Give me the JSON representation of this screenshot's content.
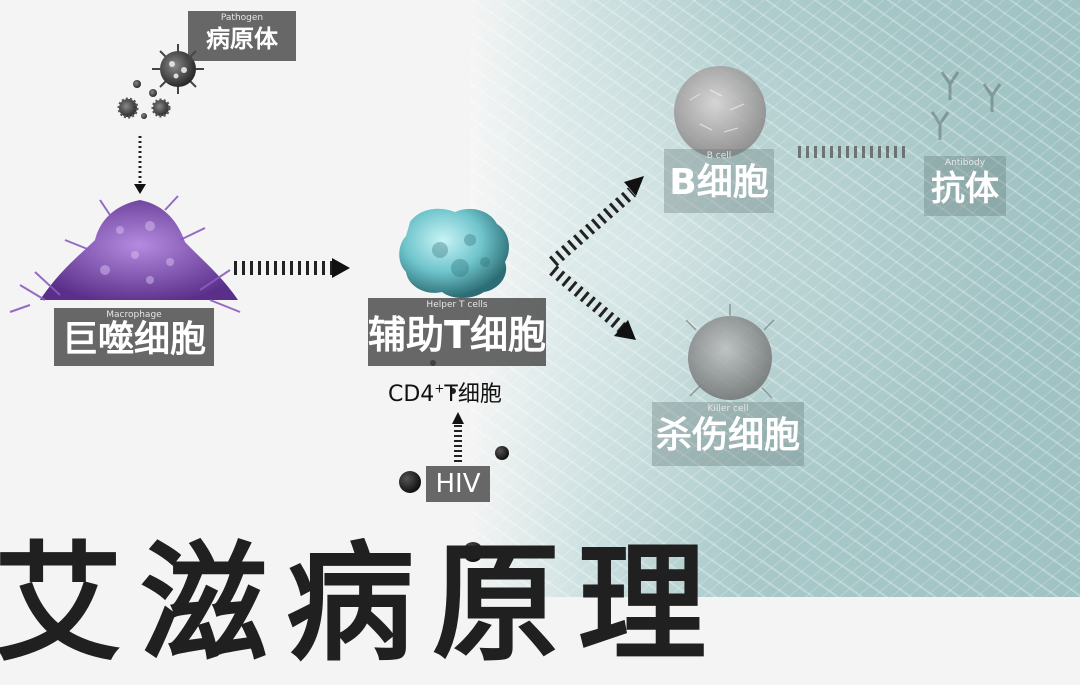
{
  "nodes": {
    "pathogen": {
      "en": "Pathogen",
      "cn": "病原体"
    },
    "macrophage": {
      "en": "Macrophage",
      "cn": "巨噬细胞"
    },
    "helper_t": {
      "en": "Helper T cells",
      "cn": "辅助T细胞"
    },
    "cd4": {
      "main": "CD4",
      "sup": "+",
      "rest": "T细胞"
    },
    "hiv": {
      "cn": "HIV"
    },
    "b_cell": {
      "en": "B cell",
      "cn": "B细胞"
    },
    "antibody": {
      "en": "Antibody",
      "cn": "抗体"
    },
    "killer_cell": {
      "en": "Killer cell",
      "cn": "杀伤细胞"
    }
  },
  "title": {
    "text": "艾滋病原理"
  },
  "colors": {
    "macrophage": "#8a5cc0",
    "helper_t": "#6fc4cc",
    "label_bg": "#484848",
    "ice": "#a9c9c9"
  }
}
